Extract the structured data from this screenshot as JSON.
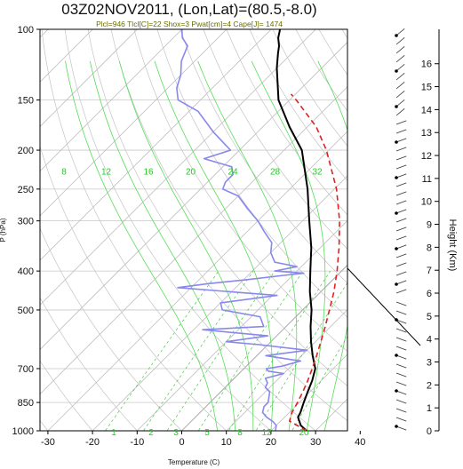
{
  "chart_data": {
    "type": "line",
    "title": "03Z02NOV2011, (Lon,Lat)=(80.5,-8.0)",
    "subtitle": "Plcl=946 Tlcl[C]=22 Shox=3 Pwat[cm]=4 Cape[J]= 1474",
    "xlabel": "Temperature (C)",
    "ylabel": "P (hPa)",
    "ylabel_right": "Height (Km)",
    "x_ticks": [
      -30,
      -20,
      -10,
      0,
      10,
      20,
      30,
      40
    ],
    "p_ticks": [
      100,
      150,
      200,
      250,
      300,
      400,
      500,
      700,
      850,
      1000
    ],
    "p_tick_labels": [
      "100",
      "150",
      "200",
      "250",
      "300",
      "400",
      "500",
      "700",
      "850",
      "1000"
    ],
    "height_ticks": [
      0,
      1,
      2,
      3,
      4,
      5,
      6,
      7,
      8,
      9,
      10,
      11,
      12,
      13,
      14,
      15,
      16
    ],
    "mixing_ratio_top_labels": [
      "8",
      "12",
      "16",
      "20",
      "24",
      "28",
      "32"
    ],
    "mixing_ratio_bottom_labels": [
      "1",
      "2",
      "3",
      "5",
      "8",
      "12",
      "20"
    ],
    "series": [
      {
        "role": "temperature",
        "color": "#000000",
        "points": [
          [
            1000,
            28
          ],
          [
            970,
            25.5
          ],
          [
            925,
            23
          ],
          [
            900,
            22.5
          ],
          [
            850,
            21
          ],
          [
            800,
            19.5
          ],
          [
            750,
            18
          ],
          [
            700,
            16
          ],
          [
            650,
            12.5
          ],
          [
            600,
            9
          ],
          [
            550,
            5.5
          ],
          [
            500,
            2
          ],
          [
            450,
            -2.5
          ],
          [
            400,
            -7
          ],
          [
            350,
            -12
          ],
          [
            300,
            -18.5
          ],
          [
            250,
            -26
          ],
          [
            200,
            -36
          ],
          [
            175,
            -44
          ],
          [
            150,
            -52.5
          ],
          [
            125,
            -60
          ],
          [
            115,
            -63
          ],
          [
            110,
            -64.5
          ],
          [
            105,
            -66.5
          ],
          [
            100,
            -68
          ]
        ]
      },
      {
        "role": "dewpoint",
        "color": "#8888ee",
        "points": [
          [
            1000,
            21
          ],
          [
            970,
            20
          ],
          [
            950,
            18.5
          ],
          [
            925,
            16
          ],
          [
            900,
            14
          ],
          [
            870,
            13
          ],
          [
            850,
            13
          ],
          [
            800,
            11
          ],
          [
            780,
            9
          ],
          [
            760,
            8.5
          ],
          [
            740,
            7
          ],
          [
            720,
            10
          ],
          [
            710,
            6
          ],
          [
            700,
            5
          ],
          [
            690,
            8
          ],
          [
            670,
            11
          ],
          [
            650,
            2
          ],
          [
            630,
            10
          ],
          [
            610,
            -2
          ],
          [
            600,
            -10
          ],
          [
            580,
            -2
          ],
          [
            560,
            -18
          ],
          [
            550,
            -5
          ],
          [
            520,
            -8
          ],
          [
            500,
            -18
          ],
          [
            480,
            -20
          ],
          [
            460,
            -9
          ],
          [
            440,
            -33
          ],
          [
            430,
            -27
          ],
          [
            420,
            -19
          ],
          [
            410,
            -12
          ],
          [
            405,
            -8
          ],
          [
            400,
            -15
          ],
          [
            390,
            -11
          ],
          [
            380,
            -17
          ],
          [
            360,
            -20
          ],
          [
            340,
            -22
          ],
          [
            320,
            -26
          ],
          [
            300,
            -30
          ],
          [
            280,
            -35
          ],
          [
            260,
            -40
          ],
          [
            250,
            -45
          ],
          [
            240,
            -46
          ],
          [
            230,
            -46
          ],
          [
            220,
            -48
          ],
          [
            210,
            -56
          ],
          [
            200,
            -52
          ],
          [
            180,
            -60
          ],
          [
            160,
            -68
          ],
          [
            150,
            -75
          ],
          [
            140,
            -78
          ],
          [
            130,
            -80
          ],
          [
            120,
            -83
          ],
          [
            110,
            -85
          ],
          [
            105,
            -88
          ],
          [
            100,
            -90
          ]
        ]
      },
      {
        "role": "parcel",
        "color": "#dd2222",
        "points": [
          [
            1000,
            28
          ],
          [
            946,
            22
          ],
          [
            900,
            20.6
          ],
          [
            850,
            19.6
          ],
          [
            800,
            18.4
          ],
          [
            750,
            17
          ],
          [
            700,
            15.3
          ],
          [
            650,
            13.4
          ],
          [
            600,
            11.2
          ],
          [
            550,
            8.8
          ],
          [
            500,
            6
          ],
          [
            450,
            2.9
          ],
          [
            400,
            -1
          ],
          [
            350,
            -5.8
          ],
          [
            300,
            -11.7
          ],
          [
            250,
            -19.5
          ],
          [
            200,
            -30.5
          ],
          [
            175,
            -38
          ],
          [
            150,
            -48.5
          ],
          [
            145,
            -51
          ]
        ]
      }
    ]
  }
}
